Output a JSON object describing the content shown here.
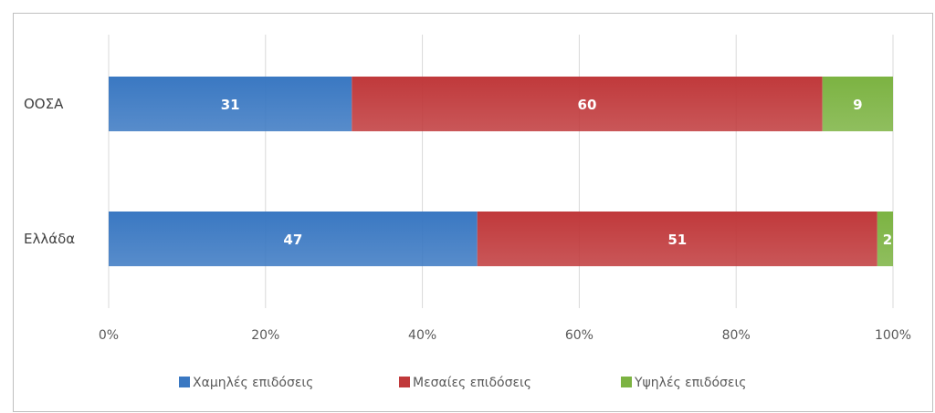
{
  "chart_data": {
    "type": "bar",
    "orientation": "horizontal",
    "stacked": true,
    "categories": [
      "ΟΟΣΑ",
      "Ελλάδα"
    ],
    "series": [
      {
        "name": "Χαμηλές επιδόσεις",
        "values": [
          31,
          47
        ],
        "color": "#3a78c2"
      },
      {
        "name": "Μεσαίες επιδόσεις",
        "values": [
          60,
          51
        ],
        "color": "#c0393b"
      },
      {
        "name": "Υψηλές επιδόσεις",
        "values": [
          9,
          2
        ],
        "color": "#7cb342"
      }
    ],
    "xlim": [
      0,
      100
    ],
    "xticks": [
      0,
      20,
      40,
      60,
      80,
      100
    ],
    "xtick_labels": [
      "0%",
      "20%",
      "40%",
      "60%",
      "80%",
      "100%"
    ],
    "grid": true,
    "legend_position": "bottom",
    "data_labels": true
  }
}
